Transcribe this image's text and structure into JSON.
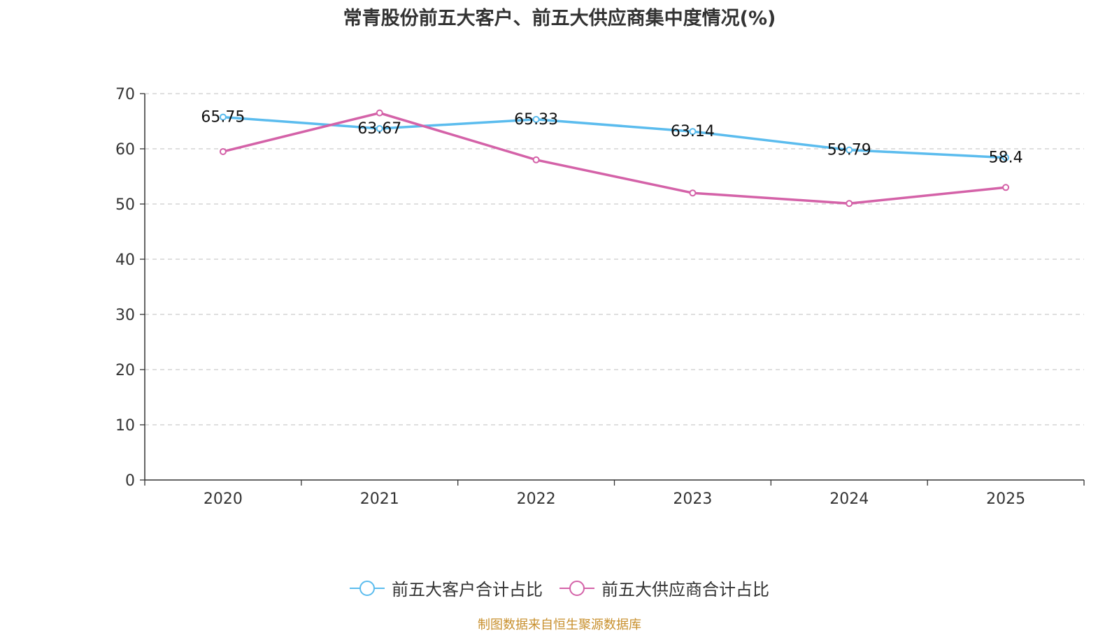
{
  "title": "常青股份前五大客户、前五大供应商集中度情况(%)",
  "source_note": "制图数据来自恒生聚源数据库",
  "colors": {
    "series_customers": "#5bbcee",
    "series_suppliers": "#d462a8",
    "grid": "#cccccc",
    "axis": "#333333",
    "text": "#333333",
    "source": "#c8902e"
  },
  "chart_data": {
    "type": "line",
    "title": "常青股份前五大客户、前五大供应商集中度情况(%)",
    "categories": [
      "2020",
      "2021",
      "2022",
      "2023",
      "2024",
      "2025"
    ],
    "ylim": [
      0,
      70
    ],
    "yticks": [
      0,
      10,
      20,
      30,
      40,
      50,
      60,
      70
    ],
    "grid": true,
    "legend_position": "bottom",
    "series": [
      {
        "name": "前五大客户合计占比",
        "values": [
          65.75,
          63.67,
          65.33,
          63.14,
          59.79,
          58.4
        ],
        "labels": [
          "65.75",
          "63.67",
          "65.33",
          "63.14",
          "59.79",
          "58.4"
        ],
        "show_labels": true
      },
      {
        "name": "前五大供应商合计占比",
        "values": [
          59.5,
          66.5,
          58.0,
          52.0,
          50.1,
          53.0
        ],
        "show_labels": false
      }
    ]
  }
}
